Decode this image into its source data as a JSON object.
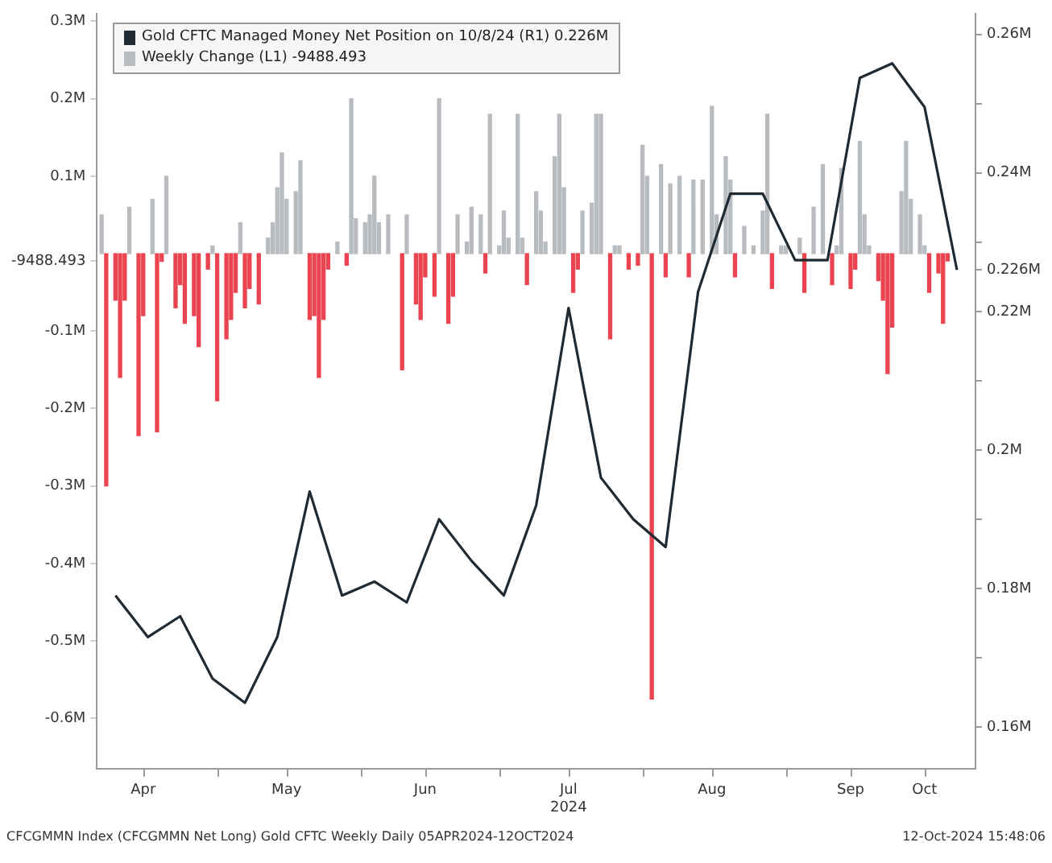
{
  "chart_data": {
    "type": "bar",
    "legend": "top left",
    "marker": "none",
    "line_style": "solid",
    "grid": false,
    "annotations": [
      "CFCGMMN Index (CFCGMMN Net Long) Gold CFTC Weekly  Daily 05APR2024-12OCT2024",
      "12-Oct-2024 15:48:06"
    ],
    "xlim": [
      "2024-04-05",
      "2024-10-12"
    ],
    "xticks": [
      {
        "value": "2024-04-15",
        "label": "Apr"
      },
      {
        "value": "2024-05-01",
        "label": null
      },
      {
        "value": "2024-05-16",
        "label": "May"
      },
      {
        "value": "2024-06-01",
        "label": null
      },
      {
        "value": "2024-06-15",
        "label": "Jun"
      },
      {
        "value": "2024-07-01",
        "label": null
      },
      {
        "value": "2024-07-16",
        "label": "Jul\n2024"
      },
      {
        "value": "2024-08-01",
        "label": null
      },
      {
        "value": "2024-08-16",
        "label": "Aug"
      },
      {
        "value": "2024-09-01",
        "label": null
      },
      {
        "value": "2024-09-15",
        "label": "Sep"
      },
      {
        "value": "2024-10-01",
        "label": "Oct"
      }
    ],
    "ylim": [
      -665000,
      310000
    ],
    "yticks": [
      {
        "value": -600000,
        "label": "-0.6M"
      },
      {
        "value": -500000,
        "label": "-0.5M"
      },
      {
        "value": -400000,
        "label": "-0.4M"
      },
      {
        "value": -300000,
        "label": "-0.3M"
      },
      {
        "value": -200000,
        "label": "-0.2M"
      },
      {
        "value": -100000,
        "label": "-0.1M"
      },
      -9488.493,
      {
        "value": 100000,
        "label": "0.1M"
      },
      {
        "value": 200000,
        "label": "0.2M"
      },
      {
        "value": 300000,
        "label": "0.3M"
      }
    ],
    "y2lim": [
      154000,
      263000
    ],
    "y2ticks": [
      {
        "value": 160000,
        "label": "0.16M"
      },
      {
        "value": 170000,
        "label": null
      },
      {
        "value": 180000,
        "label": "0.18M"
      },
      {
        "value": 190000,
        "label": null
      },
      {
        "value": 200000,
        "label": "0.2M"
      },
      {
        "value": 210000,
        "label": null
      },
      {
        "value": 220000,
        "label": "0.22M"
      },
      {
        "value": 226000,
        "label": "0.226M"
      },
      {
        "value": 230000,
        "label": null
      },
      {
        "value": 240000,
        "label": "0.24M"
      },
      {
        "value": 250000,
        "label": null
      },
      {
        "value": 260000,
        "label": "0.26M"
      }
    ],
    "series": [
      {
        "name": "Gold CFTC Managed Money Net Position on 10/8/24 (R1) 0.226M",
        "type": "line",
        "axis": "y2",
        "color": "#1f2a33",
        "x": [
          "2024-04-09",
          "2024-04-16",
          "2024-04-23",
          "2024-04-30",
          "2024-05-07",
          "2024-05-14",
          "2024-05-21",
          "2024-05-28",
          "2024-06-04",
          "2024-06-11",
          "2024-06-18",
          "2024-06-25",
          "2024-07-02",
          "2024-07-09",
          "2024-07-16",
          "2024-07-23",
          "2024-07-30",
          "2024-08-06",
          "2024-08-13",
          "2024-08-20",
          "2024-08-27",
          "2024-09-03",
          "2024-09-10",
          "2024-09-17",
          "2024-09-24",
          "2024-10-01",
          "2024-10-08"
        ],
        "values": [
          179000,
          173000,
          176000,
          167000,
          163500,
          173000,
          194000,
          179000,
          181000,
          178000,
          190000,
          184000,
          179000,
          192000,
          220500,
          196000,
          190000,
          186000,
          222800,
          237000,
          237000,
          227400,
          227400,
          253700,
          255800,
          249500,
          226000
        ]
      },
      {
        "name": "Weekly Change (L1) -9488.493",
        "x": [
          "2024-04-06",
          "2024-04-07",
          "2024-04-09",
          "2024-04-10",
          "2024-04-11",
          "2024-04-12",
          "2024-04-14",
          "2024-04-15",
          "2024-04-17",
          "2024-04-18",
          "2024-04-19",
          "2024-04-20",
          "2024-04-22",
          "2024-04-23",
          "2024-04-24",
          "2024-04-26",
          "2024-04-27",
          "2024-04-29",
          "2024-04-30",
          "2024-05-01",
          "2024-05-03",
          "2024-05-04",
          "2024-05-05",
          "2024-05-06",
          "2024-05-07",
          "2024-05-08",
          "2024-05-10",
          "2024-05-12",
          "2024-05-13",
          "2024-05-14",
          "2024-05-15",
          "2024-05-16",
          "2024-05-18",
          "2024-05-19",
          "2024-05-21",
          "2024-05-22",
          "2024-05-23",
          "2024-05-24",
          "2024-05-25",
          "2024-05-27",
          "2024-05-29",
          "2024-05-30",
          "2024-05-31",
          "2024-06-02",
          "2024-06-03",
          "2024-06-04",
          "2024-06-05",
          "2024-06-07",
          "2024-06-10",
          "2024-06-11",
          "2024-06-13",
          "2024-06-14",
          "2024-06-15",
          "2024-06-17",
          "2024-06-18",
          "2024-06-20",
          "2024-06-21",
          "2024-06-22",
          "2024-06-24",
          "2024-06-25",
          "2024-06-27",
          "2024-06-28",
          "2024-06-29",
          "2024-07-01",
          "2024-07-02",
          "2024-07-03",
          "2024-07-05",
          "2024-07-06",
          "2024-07-07",
          "2024-07-09",
          "2024-07-10",
          "2024-07-11",
          "2024-07-13",
          "2024-07-14",
          "2024-07-15",
          "2024-07-17",
          "2024-07-18",
          "2024-07-19",
          "2024-07-21",
          "2024-07-22",
          "2024-07-23",
          "2024-07-25",
          "2024-07-26",
          "2024-07-27",
          "2024-07-29",
          "2024-07-31",
          "2024-08-01",
          "2024-08-02",
          "2024-08-03",
          "2024-08-05",
          "2024-08-06",
          "2024-08-07",
          "2024-08-09",
          "2024-08-11",
          "2024-08-12",
          "2024-08-14",
          "2024-08-16",
          "2024-08-17",
          "2024-08-19",
          "2024-08-20",
          "2024-08-21",
          "2024-08-23",
          "2024-08-25",
          "2024-08-27",
          "2024-08-28",
          "2024-08-29",
          "2024-08-31",
          "2024-09-01",
          "2024-09-04",
          "2024-09-05",
          "2024-09-07",
          "2024-09-09",
          "2024-09-11",
          "2024-09-12",
          "2024-09-13",
          "2024-09-15",
          "2024-09-16",
          "2024-09-17",
          "2024-09-18",
          "2024-09-19",
          "2024-09-21",
          "2024-09-22",
          "2024-09-23",
          "2024-09-24",
          "2024-09-26",
          "2024-09-27",
          "2024-09-28",
          "2024-09-30",
          "2024-10-01",
          "2024-10-02",
          "2024-10-04",
          "2024-10-05",
          "2024-10-06"
        ],
        "values": [
          50000,
          -300000,
          -60000,
          -160000,
          -60000,
          60000,
          -235000,
          -80000,
          70000,
          -230000,
          -10000,
          100000,
          -70000,
          -40000,
          -90000,
          -80000,
          -120000,
          -20000,
          10000,
          -190000,
          -110000,
          -85000,
          -50000,
          40000,
          -70000,
          -45000,
          -65000,
          20000,
          40000,
          85000,
          130000,
          70000,
          80000,
          120000,
          -85000,
          -80000,
          -160000,
          -85000,
          -20000,
          15000,
          -15000,
          200000,
          45000,
          40000,
          50000,
          100000,
          40000,
          50000,
          -150000,
          50000,
          -65000,
          -85000,
          -30000,
          -55000,
          200000,
          -90000,
          -55000,
          50000,
          15000,
          60000,
          50000,
          -25000,
          180000,
          10000,
          55000,
          20000,
          180000,
          20000,
          -40000,
          80000,
          55000,
          15000,
          125000,
          180000,
          85000,
          -50000,
          -20000,
          55000,
          65000,
          180000,
          180000,
          -110000,
          10000,
          10000,
          -20000,
          -15000,
          140000,
          100000,
          -575000,
          115000,
          -30000,
          90000,
          100000,
          -30000,
          95000,
          95000,
          190000,
          50000,
          125000,
          95000,
          -30000,
          35000,
          10000,
          55000,
          180000,
          -45000,
          10000,
          10000,
          20000,
          -50000,
          60000,
          115000,
          -40000,
          10000,
          110000,
          -45000,
          -20000,
          145000,
          50000,
          10000,
          -35000,
          -60000,
          -155000,
          -95000,
          80000,
          145000,
          70000,
          50000,
          10000,
          -50000,
          -25000,
          -90000,
          -9488.493
        ],
        "colors": [
          "#b8bcc0",
          "#e9444f",
          "#e9444f",
          "#e9444f",
          "#e9444f",
          "#b8bcc0",
          "#e9444f",
          "#e9444f",
          "#b8bcc0",
          "#e9444f",
          "#e9444f",
          "#b8bcc0",
          "#e9444f",
          "#e9444f",
          "#e9444f",
          "#e9444f",
          "#e9444f",
          "#e9444f",
          "#b8bcc0",
          "#e9444f",
          "#e9444f",
          "#e9444f",
          "#e9444f",
          "#b8bcc0",
          "#e9444f",
          "#e9444f",
          "#e9444f",
          "#b8bcc0",
          "#b8bcc0",
          "#b8bcc0",
          "#b8bcc0",
          "#b8bcc0",
          "#b8bcc0",
          "#b8bcc0",
          "#e9444f",
          "#e9444f",
          "#e9444f",
          "#e9444f",
          "#e9444f",
          "#b8bcc0",
          "#e9444f",
          "#b8bcc0",
          "#b8bcc0",
          "#b8bcc0",
          "#b8bcc0",
          "#b8bcc0",
          "#b8bcc0",
          "#b8bcc0",
          "#e9444f",
          "#b8bcc0",
          "#e9444f",
          "#e9444f",
          "#e9444f",
          "#e9444f",
          "#b8bcc0",
          "#e9444f",
          "#e9444f",
          "#b8bcc0",
          "#b8bcc0",
          "#b8bcc0",
          "#b8bcc0",
          "#e9444f",
          "#b8bcc0",
          "#b8bcc0",
          "#b8bcc0",
          "#b8bcc0",
          "#b8bcc0",
          "#b8bcc0",
          "#e9444f",
          "#b8bcc0",
          "#b8bcc0",
          "#b8bcc0",
          "#b8bcc0",
          "#b8bcc0",
          "#b8bcc0",
          "#e9444f",
          "#e9444f",
          "#b8bcc0",
          "#b8bcc0",
          "#b8bcc0",
          "#b8bcc0",
          "#e9444f",
          "#b8bcc0",
          "#b8bcc0",
          "#e9444f",
          "#e9444f",
          "#b8bcc0",
          "#b8bcc0",
          "#e9444f",
          "#b8bcc0",
          "#e9444f",
          "#b8bcc0",
          "#b8bcc0",
          "#e9444f",
          "#b8bcc0",
          "#b8bcc0",
          "#b8bcc0",
          "#b8bcc0",
          "#b8bcc0",
          "#b8bcc0",
          "#e9444f",
          "#b8bcc0",
          "#b8bcc0",
          "#b8bcc0",
          "#b8bcc0",
          "#e9444f",
          "#b8bcc0",
          "#b8bcc0",
          "#b8bcc0",
          "#e9444f",
          "#b8bcc0",
          "#b8bcc0",
          "#e9444f",
          "#b8bcc0",
          "#b8bcc0",
          "#e9444f",
          "#e9444f",
          "#b8bcc0",
          "#b8bcc0",
          "#b8bcc0",
          "#e9444f",
          "#e9444f",
          "#e9444f",
          "#e9444f",
          "#b8bcc0",
          "#b8bcc0",
          "#b8bcc0",
          "#b8bcc0",
          "#b8bcc0",
          "#e9444f",
          "#e9444f",
          "#e9444f",
          "#e9444f"
        ]
      }
    ]
  }
}
